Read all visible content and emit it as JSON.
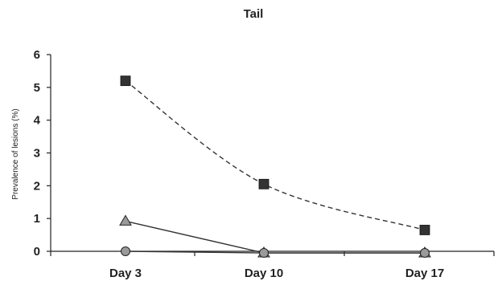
{
  "chart_data": {
    "type": "line",
    "title": "Tail",
    "xlabel": "",
    "ylabel": "Prevalence of lesions (%)",
    "categories": [
      "Day 3",
      "Day 10",
      "Day 17"
    ],
    "ylim": [
      0,
      6
    ],
    "yticks": [
      "0",
      "1",
      "2",
      "3",
      "4",
      "5",
      "6"
    ],
    "grid": false,
    "legend": "none",
    "series": [
      {
        "marker": "square",
        "line_style": "dashed",
        "marker_color": "#333333",
        "values": [
          5.2,
          2.05,
          0.65
        ]
      },
      {
        "marker": "triangle",
        "line_style": "solid",
        "marker_color": "#9a9a9a",
        "values": [
          0.92,
          -0.05,
          -0.05
        ]
      },
      {
        "marker": "circle",
        "line_style": "solid",
        "marker_color": "#9a9a9a",
        "values": [
          0.0,
          -0.05,
          -0.05
        ]
      }
    ]
  }
}
